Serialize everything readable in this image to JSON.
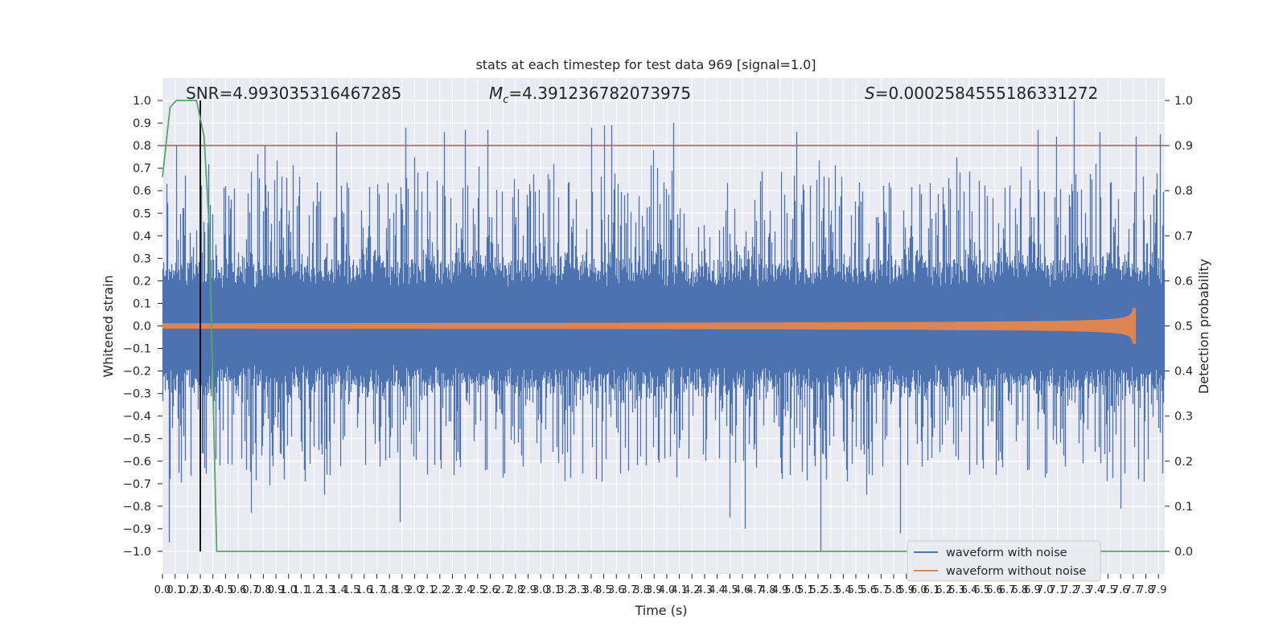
{
  "chart_data": {
    "type": "line",
    "title": "stats at each timestep for test data 969 [signal=1.0]",
    "xlabel": "Time (s)",
    "ylabel": "Whitened strain",
    "ylabel_right": "Detection probability",
    "xlim": [
      0,
      7.95
    ],
    "ylim": [
      -1.1,
      1.1
    ],
    "ylim_right": [
      -0.05,
      1.05
    ],
    "grid": true,
    "legend_position": "lower-right",
    "annotations": {
      "snr": "SNR=4.993035316467285",
      "mc_symbol": "M",
      "mc_sub": "c",
      "mc_value": "=4.391236782073975",
      "s_symbol": "S",
      "s_value": "=0.0002584555186331272"
    },
    "yticks_left": [
      "1.0",
      "0.9",
      "0.8",
      "0.7",
      "0.6",
      "0.5",
      "0.4",
      "0.3",
      "0.2",
      "0.1",
      "0.0",
      "−0.1",
      "−0.2",
      "−0.3",
      "−0.4",
      "−0.5",
      "−0.6",
      "−0.7",
      "−0.8",
      "−0.9",
      "−1.0"
    ],
    "yticks_right": [
      "1.0",
      "0.9",
      "0.8",
      "0.7",
      "0.6",
      "0.5",
      "0.4",
      "0.3",
      "0.2",
      "0.1",
      "0.0"
    ],
    "xtick_step": 0.1,
    "xtick_count": 80,
    "series": [
      {
        "name": "waveform with noise",
        "color": "#4c72b0",
        "axis": "left",
        "envelope": "noise",
        "sample_rate": 2048,
        "duration": 7.95,
        "peaks": [
          {
            "x": 0.03,
            "y": 0.63
          },
          {
            "x": 0.05,
            "y": -0.96
          },
          {
            "x": 0.11,
            "y": 0.8
          },
          {
            "x": 0.5,
            "y": 0.62
          },
          {
            "x": 0.7,
            "y": -0.83
          },
          {
            "x": 0.81,
            "y": 0.8
          },
          {
            "x": 1.38,
            "y": 0.86
          },
          {
            "x": 1.88,
            "y": -0.87
          },
          {
            "x": 1.93,
            "y": 0.88
          },
          {
            "x": 2.23,
            "y": 0.86
          },
          {
            "x": 2.4,
            "y": 0.87
          },
          {
            "x": 2.58,
            "y": 0.87
          },
          {
            "x": 3.4,
            "y": 0.88
          },
          {
            "x": 3.5,
            "y": 0.89
          },
          {
            "x": 3.56,
            "y": 0.89
          },
          {
            "x": 4.05,
            "y": 0.9
          },
          {
            "x": 4.5,
            "y": -0.85
          },
          {
            "x": 4.62,
            "y": -0.9
          },
          {
            "x": 5.03,
            "y": 0.86
          },
          {
            "x": 5.22,
            "y": -1.0
          },
          {
            "x": 5.85,
            "y": -0.92
          },
          {
            "x": 6.94,
            "y": 0.87
          },
          {
            "x": 7.09,
            "y": 0.84
          },
          {
            "x": 7.23,
            "y": 1.0
          },
          {
            "x": 7.43,
            "y": 0.86
          },
          {
            "x": 7.6,
            "y": -0.81
          },
          {
            "x": 7.72,
            "y": 0.84
          },
          {
            "x": 7.91,
            "y": 0.85
          }
        ]
      },
      {
        "name": "waveform without noise",
        "color": "#dd8452",
        "axis": "left",
        "envelope": "chirp",
        "amplitude_start": 0.012,
        "amplitude_peak": 0.12,
        "merger_time": 7.7,
        "end_time": 7.72
      },
      {
        "color": "#55a868",
        "axis": "right",
        "points": [
          [
            0,
            0.83
          ],
          [
            0.06,
            0.985
          ],
          [
            0.11,
            1.0
          ],
          [
            0.27,
            1.0
          ],
          [
            0.33,
            0.92
          ],
          [
            0.37,
            0.72
          ],
          [
            0.43,
            0.0
          ],
          [
            7.95,
            0.0
          ]
        ]
      },
      {
        "color": "#c44e52",
        "axis": "left",
        "kind": "hline",
        "y": 0.8
      },
      {
        "color": "#000000",
        "axis": "left",
        "kind": "vline",
        "x": 0.3,
        "y_range": [
          -1.0,
          1.0
        ]
      }
    ]
  }
}
